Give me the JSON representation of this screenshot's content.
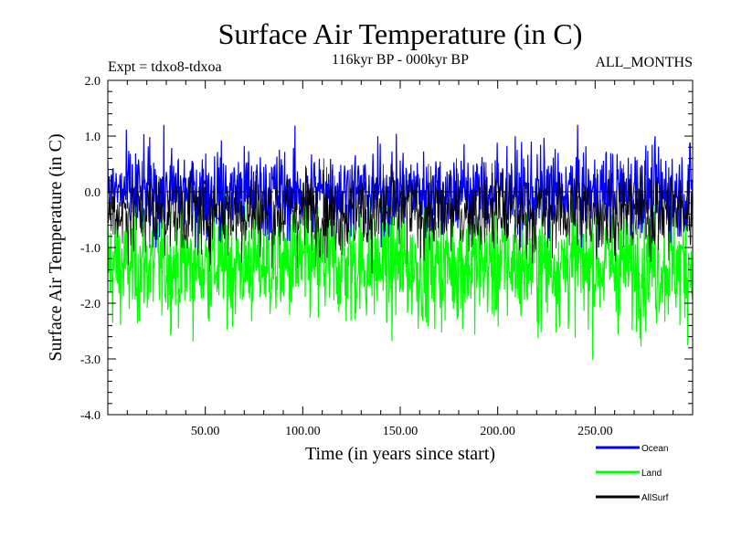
{
  "chart_data": {
    "type": "line",
    "title": "Surface Air Temperature (in C)",
    "subtitle": "116kyr BP - 000kyr BP",
    "experiment_label": "Expt = tdxo8-tdxoa",
    "months_label": "ALL_MONTHS",
    "xlabel": "Time (in years since start)",
    "ylabel": "Surface Air Temperature (in C)",
    "xlim": [
      0,
      300
    ],
    "ylim": [
      -4.0,
      2.0
    ],
    "x_ticks": [
      50,
      100,
      150,
      200,
      250
    ],
    "x_tick_labels": [
      "50.00",
      "100.00",
      "150.00",
      "200.00",
      "250.00"
    ],
    "y_ticks": [
      2.0,
      1.0,
      0.0,
      -1.0,
      -2.0,
      -3.0,
      -4.0
    ],
    "y_tick_labels": [
      "2.0",
      "1.0",
      "0.0",
      "-1.0",
      "-2.0",
      "-3.0",
      "-4.0"
    ],
    "zero_line": true,
    "legend_placement": "bottom-right",
    "series": [
      {
        "name": "Ocean",
        "color": "#0000ff",
        "mean": 0.0,
        "typical_range": [
          -0.6,
          0.7
        ],
        "extremes": [
          -1.0,
          1.2
        ]
      },
      {
        "name": "Land",
        "color": "#00ff00",
        "mean": -1.3,
        "typical_range": [
          -2.3,
          -0.5
        ],
        "extremes": [
          -3.4,
          1.4
        ]
      },
      {
        "name": "AllSurf",
        "color": "#000000",
        "mean": -0.35,
        "typical_range": [
          -1.0,
          0.3
        ],
        "extremes": [
          -1.5,
          0.6
        ]
      }
    ]
  }
}
